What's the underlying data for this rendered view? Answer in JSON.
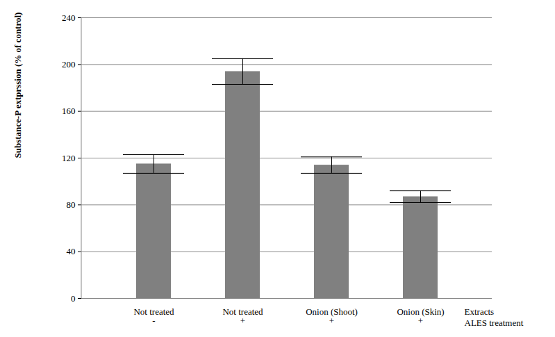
{
  "chart_data": {
    "type": "bar",
    "categories": [
      "Not treated\n-",
      "Not treated\n+",
      "Onion (Shoot)\n+",
      "Onion (Skin)\n+"
    ],
    "category_rows": [
      "Extracts",
      "ALES treatment"
    ],
    "values": [
      115,
      194,
      114,
      87
    ],
    "errors": [
      8,
      11,
      7,
      5
    ],
    "color": "#808080",
    "ylabel": "Substance-P extprssion (% of control)",
    "ylim": [
      0,
      240
    ],
    "yticks": [
      0,
      40,
      80,
      120,
      160,
      200,
      240
    ],
    "grid": true
  }
}
